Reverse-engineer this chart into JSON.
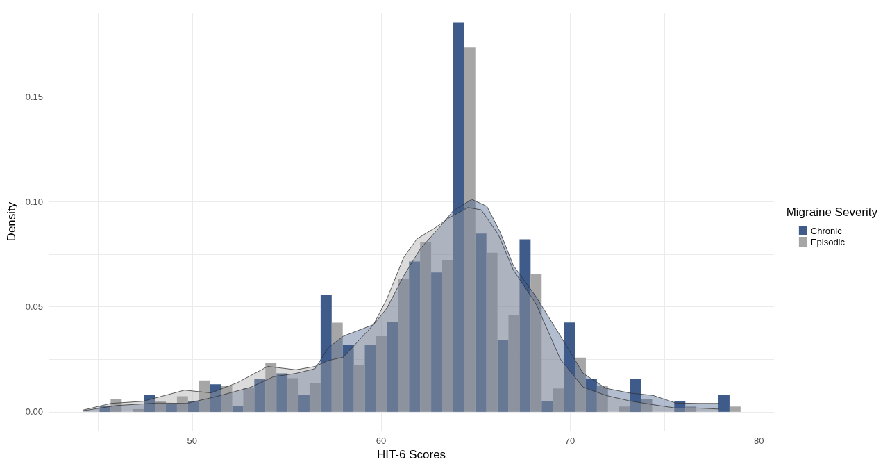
{
  "chart_data": {
    "type": "histogram",
    "xlabel": "HIT-6 Scores",
    "ylabel": "Density",
    "legend_title": "Migraine Severity",
    "bins": [
      45.1,
      46.27,
      47.44,
      48.61,
      49.78,
      50.95,
      52.12,
      53.29,
      54.46,
      55.63,
      56.8,
      57.97,
      59.14,
      60.31,
      61.48,
      62.65,
      63.82,
      64.99,
      66.16,
      67.33,
      68.5,
      69.67,
      70.84,
      72.01,
      73.18,
      74.35,
      75.52,
      76.69,
      77.86,
      79.03
    ],
    "series": [
      {
        "name": "Chronic",
        "color": "#3e5b8a",
        "values": [
          0.0026,
          0,
          0.0079,
          0.0036,
          0.0052,
          0.0131,
          0.0026,
          0.0157,
          0.0183,
          0.0079,
          0.0555,
          0.0318,
          0.0318,
          0.0426,
          0.0715,
          0.0663,
          0.1852,
          0.0848,
          0.0343,
          0.0821,
          0.0052,
          0.0425,
          0.0157,
          0,
          0.0157,
          0,
          0.0052,
          0,
          0.0079
        ]
      },
      {
        "name": "Episodic",
        "color": "#a6a6a6",
        "values": [
          0.0062,
          0.0013,
          0.005,
          0.0074,
          0.0149,
          0.0123,
          0.0114,
          0.0234,
          0.016,
          0.0136,
          0.0424,
          0.0223,
          0.036,
          0.0632,
          0.0806,
          0.072,
          0.1734,
          0.0757,
          0.0459,
          0.0654,
          0.0111,
          0.0258,
          0.0123,
          0.0025,
          0.006,
          0,
          0.0025,
          0,
          0.0025
        ]
      },
      {
        "type": "area",
        "color": "#3e5b8a",
        "x": [
          44.2,
          46.0,
          48.2,
          49.7,
          51.3,
          53.1,
          54.3,
          55.5,
          56.5,
          57.2,
          58.0,
          59.6,
          60.3,
          61.2,
          62.1,
          63.1,
          63.8,
          64.8,
          65.6,
          66.3,
          67.0,
          68.2,
          69.5,
          70.7,
          71.9,
          73.2,
          74.4,
          75.6,
          76.8,
          77.9
        ],
        "values": [
          0.0005,
          0.003,
          0.0042,
          0.004,
          0.0073,
          0.0117,
          0.0167,
          0.0183,
          0.0205,
          0.0305,
          0.036,
          0.0415,
          0.0492,
          0.0647,
          0.0779,
          0.0878,
          0.0955,
          0.1011,
          0.0978,
          0.0856,
          0.0697,
          0.0548,
          0.036,
          0.0183,
          0.0112,
          0.0089,
          0.0078,
          0.0042,
          0.004,
          0.004
        ]
      },
      {
        "type": "area",
        "color": "#a6a6a6",
        "x": [
          44.2,
          45.7,
          47.4,
          49.6,
          51.0,
          52.4,
          54.0,
          55.5,
          56.5,
          57.2,
          58.0,
          59.6,
          60.3,
          61.2,
          61.9,
          62.9,
          63.6,
          64.6,
          65.3,
          66.2,
          67.0,
          68.2,
          69.5,
          70.7,
          71.9,
          73.2,
          74.4,
          75.6,
          76.8,
          77.9
        ],
        "values": [
          0.0008,
          0.004,
          0.005,
          0.0103,
          0.009,
          0.0139,
          0.0216,
          0.02,
          0.0216,
          0.0244,
          0.026,
          0.0415,
          0.0536,
          0.0735,
          0.0823,
          0.0878,
          0.0923,
          0.0972,
          0.0961,
          0.0845,
          0.0675,
          0.0514,
          0.0249,
          0.0117,
          0.0078,
          0.0051,
          0.0034,
          0.0018,
          0.0018,
          0.0013
        ]
      }
    ],
    "xlim": [
      42.4,
      80.8
    ],
    "xticks": [
      {
        "value": 45,
        "label": null
      },
      50,
      {
        "value": 55,
        "label": null
      },
      60,
      {
        "value": 65,
        "label": null
      },
      70,
      {
        "value": 75,
        "label": null
      },
      80
    ],
    "ylim": [
      -0.009,
      0.19
    ],
    "yticks": [
      {
        "value": 0,
        "label": "0.00"
      },
      {
        "value": 0.025,
        "label": null
      },
      0.05,
      {
        "value": 0.075,
        "label": null
      },
      {
        "value": 0.1,
        "label": "0.10"
      },
      {
        "value": 0.125,
        "label": null
      },
      0.15,
      {
        "value": 0.175,
        "label": null
      }
    ],
    "grid": true,
    "legend": "right"
  }
}
